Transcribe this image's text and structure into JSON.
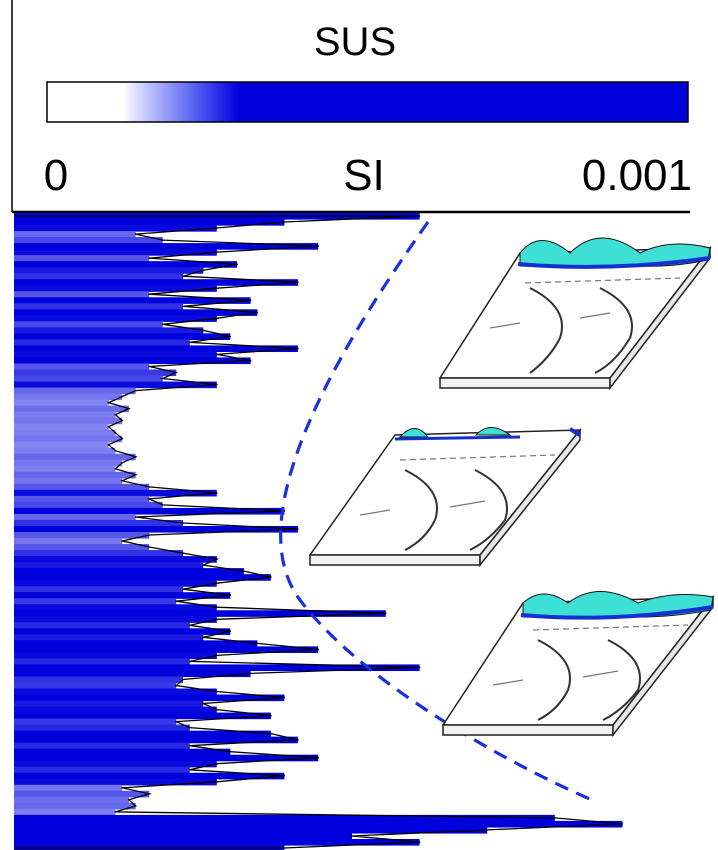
{
  "chart_data": {
    "type": "area",
    "title": "SUS",
    "colorbar": {
      "min_label": "0",
      "unit_label": "SI",
      "max_label": "0.001",
      "range": [
        0,
        0.001
      ],
      "color_low": "#ffffff",
      "color_high": "#0000dd"
    },
    "orientation": "vertical-depth",
    "x_range": [
      0,
      0.001
    ],
    "series": [
      {
        "values": [
          0.0006,
          0.0004,
          0.0003,
          0.00018,
          0.00022,
          0.00045,
          0.0003,
          0.0002,
          0.00033,
          0.00028,
          0.00025,
          0.00042,
          0.0003,
          0.0002,
          0.00035,
          0.00025,
          0.00036,
          0.0003,
          0.00022,
          0.00028,
          0.00032,
          0.00026,
          0.00042,
          0.0003,
          0.00035,
          0.0002,
          0.00024,
          0.00022,
          0.0003,
          0.00018,
          0.00016,
          0.00014,
          0.00017,
          0.00015,
          0.00016,
          0.00014,
          0.00015,
          0.00016,
          0.00014,
          0.00015,
          0.00018,
          0.00016,
          0.00015,
          0.00018,
          0.00016,
          0.0002,
          0.0003,
          0.0002,
          0.00022,
          0.0004,
          0.00018,
          0.00025,
          0.00042,
          0.0002,
          0.00016,
          0.0002,
          0.00025,
          0.0003,
          0.00028,
          0.00034,
          0.00038,
          0.0003,
          0.00025,
          0.00032,
          0.00024,
          0.0003,
          0.00055,
          0.0003,
          0.00026,
          0.00032,
          0.00028,
          0.00036,
          0.00045,
          0.0003,
          0.00026,
          0.0006,
          0.00035,
          0.00025,
          0.00024,
          0.0003,
          0.0004,
          0.00028,
          0.0003,
          0.00038,
          0.00024,
          0.00026,
          0.00038,
          0.00042,
          0.00026,
          0.00032,
          0.00045,
          0.0003,
          0.00026,
          0.0004,
          0.0003,
          0.00016,
          0.0002,
          0.00017,
          0.00018,
          0.00015,
          0.0008,
          0.0009,
          0.0007,
          0.0005,
          0.0006,
          0.0004
        ]
      }
    ],
    "annotations": {
      "boundary_curve": "dashed",
      "boundary_color": "#1a2fe0",
      "block_diagrams": 3,
      "block_ground_color": "#3ee0d6",
      "block_water_color": "#1530d0"
    }
  }
}
